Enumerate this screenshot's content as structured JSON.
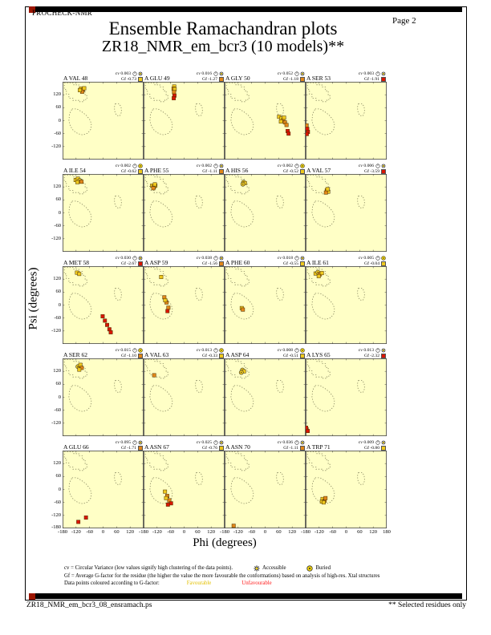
{
  "page": {
    "app": "PROCHECK-NMR",
    "page_label": "Page  2",
    "title": "Ensemble Ramachandran plots",
    "subtitle": "ZR18_NMR_em_bcr3 (10 models)**",
    "footer_left": "ZR18_NMR_em_bcr3_08_ensramach.ps",
    "footer_right": "** Selected residues only"
  },
  "legend": {
    "line1": "cv = Circular Variance (low values signify high clustering of the data points).",
    "accessible_label": "Accessible",
    "buried_label": "Buried",
    "line2": "Gf = Average G-factor for the residue (the higher the value the more favourable the conformations) based on analysis of high-res. Xtal structures",
    "line3": "Data points coloured according to G-factor:",
    "favourable_label": "Favourable",
    "unfavourable_label": "Unfavourable"
  },
  "colors": {
    "plot_bg": "#ffffc6",
    "favourable_yellow": "#eec81e",
    "mid_orange": "#e0861a",
    "unfavourable_red": "#da1602",
    "region_dots": "#85855f",
    "buried_icon": "#f2d410",
    "corner_marker": "#9b1500"
  },
  "chart_data": {
    "type": "scatter",
    "layout": {
      "rows": 5,
      "cols": 4
    },
    "xlabel": "Phi (degrees)",
    "ylabel": "Psi (degrees)",
    "xlim": [
      -180,
      180
    ],
    "ylim": [
      -180,
      180
    ],
    "xticks": [
      -180,
      -120,
      -60,
      0,
      60,
      120
    ],
    "xtick_last": 180,
    "yticks": [
      120,
      60,
      0,
      -60,
      -120
    ],
    "ytick_bottom": -180,
    "regions": {
      "beta": [
        [
          -172,
          174
        ],
        [
          -130,
          174
        ],
        [
          -130,
          166
        ],
        [
          -108,
          166
        ],
        [
          -108,
          156
        ],
        [
          -92,
          156
        ],
        [
          -92,
          138
        ],
        [
          -80,
          138
        ],
        [
          -80,
          116
        ],
        [
          -72,
          116
        ],
        [
          -72,
          98
        ],
        [
          -86,
          98
        ],
        [
          -86,
          88
        ],
        [
          -108,
          88
        ],
        [
          -108,
          94
        ],
        [
          -134,
          94
        ],
        [
          -134,
          104
        ],
        [
          -152,
          104
        ],
        [
          -152,
          122
        ],
        [
          -163,
          122
        ],
        [
          -163,
          144
        ],
        [
          -172,
          144
        ]
      ],
      "alpha": [
        [
          -138,
          54
        ],
        [
          -116,
          54
        ],
        [
          -96,
          42
        ],
        [
          -76,
          26
        ],
        [
          -60,
          6
        ],
        [
          -52,
          -14
        ],
        [
          -55,
          -40
        ],
        [
          -68,
          -58
        ],
        [
          -90,
          -66
        ],
        [
          -112,
          -60
        ],
        [
          -132,
          -46
        ],
        [
          -146,
          -24
        ],
        [
          -152,
          2
        ],
        [
          -149,
          32
        ]
      ],
      "alphaL": [
        [
          54,
          78
        ],
        [
          72,
          78
        ],
        [
          80,
          64
        ],
        [
          82,
          40
        ],
        [
          74,
          22
        ],
        [
          60,
          24
        ],
        [
          52,
          42
        ],
        [
          50,
          62
        ]
      ]
    },
    "subplots": [
      {
        "residue": "A VAL 48",
        "cv": "0.003",
        "gf": "-0.73",
        "accessibility": "accessible",
        "gf_color": "yellow",
        "points": [
          [
            -98,
            148,
            "y"
          ],
          [
            -90,
            142,
            "o"
          ],
          [
            -84,
            150,
            "y"
          ],
          [
            -93,
            134,
            "o"
          ],
          [
            -103,
            141,
            "y"
          ]
        ]
      },
      {
        "residue": "A GLU 49",
        "cv": "0.016",
        "gf": "-1.27",
        "accessibility": "accessible",
        "gf_color": "orange",
        "points": [
          [
            -44,
            158,
            "y"
          ],
          [
            -47,
            148,
            "o"
          ],
          [
            -42,
            146,
            "y"
          ],
          [
            -45,
            132,
            "o"
          ],
          [
            -43,
            116,
            "r"
          ],
          [
            -46,
            104,
            "r"
          ]
        ]
      },
      {
        "residue": "A GLY 50",
        "cv": "0.052",
        "gf": "-1.18",
        "accessibility": "accessible",
        "gf_color": "orange",
        "points": [
          [
            62,
            18,
            "y"
          ],
          [
            72,
            10,
            "y"
          ],
          [
            80,
            2,
            "o"
          ],
          [
            88,
            -8,
            "o"
          ],
          [
            70,
            -4,
            "y"
          ],
          [
            95,
            -20,
            "o"
          ],
          [
            100,
            -48,
            "r"
          ],
          [
            104,
            -60,
            "r"
          ],
          [
            84,
            14,
            "y"
          ]
        ]
      },
      {
        "residue": "A SER 53",
        "cv": "0.003",
        "gf": "-1.91",
        "accessibility": "accessible",
        "gf_color": "red",
        "points": [
          [
            -176,
            -22,
            "o"
          ],
          [
            -173,
            -38,
            "r"
          ],
          [
            -170,
            -52,
            "r"
          ],
          [
            -175,
            -62,
            "r"
          ]
        ]
      },
      {
        "residue": "A ILE 54",
        "cv": "0.002",
        "gf": "-0.62",
        "accessibility": "buried",
        "gf_color": "yellow",
        "points": [
          [
            -122,
            152,
            "y"
          ],
          [
            -112,
            158,
            "y"
          ],
          [
            -104,
            150,
            "y",
            "ci"
          ],
          [
            -96,
            144,
            "o"
          ],
          [
            -114,
            142,
            "y"
          ]
        ]
      },
      {
        "residue": "A PHE 55",
        "cv": "0.002",
        "gf": "-1.11",
        "accessibility": "accessible",
        "gf_color": "orange",
        "points": [
          [
            -142,
            126,
            "y"
          ],
          [
            -134,
            120,
            "o"
          ],
          [
            -128,
            126,
            "y"
          ],
          [
            -137,
            114,
            "o"
          ],
          [
            -130,
            132,
            "y"
          ]
        ]
      },
      {
        "residue": "A HIS 56",
        "cv": "0.002",
        "gf": "-0.52",
        "accessibility": "buried",
        "gf_color": "yellow",
        "points": [
          [
            -96,
            142,
            "y",
            "ci"
          ],
          [
            -90,
            138,
            "y"
          ],
          [
            -99,
            133,
            "y",
            "ci"
          ]
        ]
      },
      {
        "residue": "A VAL 57",
        "cv": "0.006",
        "gf": "-3.59",
        "accessibility": "accessible",
        "gf_color": "red",
        "points": [
          [
            -86,
            104,
            "o"
          ],
          [
            -80,
            98,
            "y"
          ],
          [
            -90,
            94,
            "o"
          ],
          [
            -83,
            110,
            "y"
          ]
        ]
      },
      {
        "residue": "A MET 58",
        "cv": "0.030",
        "gf": "-2.67",
        "accessibility": "accessible",
        "gf_color": "red",
        "points": [
          [
            -116,
            150,
            "y"
          ],
          [
            -106,
            144,
            "y"
          ],
          [
            -2,
            -52,
            "r"
          ],
          [
            8,
            -72,
            "r"
          ],
          [
            18,
            -92,
            "r"
          ],
          [
            28,
            -112,
            "r"
          ],
          [
            34,
            -126,
            "r"
          ]
        ]
      },
      {
        "residue": "A ASP 59",
        "cv": "0.038",
        "gf": "-1.56",
        "accessibility": "accessible",
        "gf_color": "orange",
        "points": [
          [
            -102,
            130,
            "y"
          ],
          [
            -88,
            36,
            "o"
          ],
          [
            -78,
            12,
            "o"
          ],
          [
            -70,
            -12,
            "o"
          ],
          [
            -74,
            -28,
            "r"
          ],
          [
            -84,
            22,
            "y"
          ]
        ]
      },
      {
        "residue": "A PHE 60",
        "cv": "0.018",
        "gf": "-0.55",
        "accessibility": "accessible",
        "gf_color": "yellow",
        "points": [
          [
            -104,
            -14,
            "y"
          ],
          [
            -99,
            -21,
            "o"
          ]
        ]
      },
      {
        "residue": "A ILE 61",
        "cv": "0.005",
        "gf": "-0.04",
        "accessibility": "buried",
        "gf_color": "yellow",
        "points": [
          [
            -136,
            146,
            "y"
          ],
          [
            -126,
            152,
            "y",
            "ci"
          ],
          [
            -117,
            142,
            "o"
          ],
          [
            -108,
            148,
            "y"
          ],
          [
            -122,
            134,
            "y"
          ]
        ]
      },
      {
        "residue": "A SER 62",
        "cv": "0.015",
        "gf": "-1.10",
        "accessibility": "buried",
        "gf_color": "orange",
        "points": [
          [
            -112,
            142,
            "y",
            "ci"
          ],
          [
            -101,
            150,
            "y"
          ],
          [
            -95,
            136,
            "o"
          ],
          [
            -106,
            128,
            "y"
          ]
        ]
      },
      {
        "residue": "A VAL 63",
        "cv": "0.013",
        "gf": "-0.33",
        "accessibility": "buried",
        "gf_color": "yellow",
        "points": [
          [
            -133,
            102,
            "o"
          ]
        ]
      },
      {
        "residue": "A ASP 64",
        "cv": "0.008",
        "gf": "-0.51",
        "accessibility": "buried",
        "gf_color": "yellow",
        "points": [
          [
            -101,
            126,
            "y",
            "ci"
          ],
          [
            -94,
            120,
            "y"
          ],
          [
            -106,
            115,
            "y",
            "ci"
          ]
        ]
      },
      {
        "residue": "A LYS 65",
        "cv": "0.013",
        "gf": "-2.32",
        "accessibility": "accessible",
        "gf_color": "red",
        "points": [
          [
            -176,
            -148,
            "r"
          ],
          [
            -171,
            -156,
            "r"
          ],
          [
            -178,
            -141,
            "r"
          ]
        ]
      },
      {
        "residue": "A GLU 66",
        "cv": "0.095",
        "gf": "-1.71",
        "accessibility": "accessible",
        "gf_color": "orange",
        "points": [
          [
            -110,
            -150,
            "r"
          ],
          [
            -76,
            -130,
            "r"
          ]
        ]
      },
      {
        "residue": "A ASN 67",
        "cv": "0.025",
        "gf": "-0.76",
        "accessibility": "accessible",
        "gf_color": "yellow",
        "points": [
          [
            -85,
            -10,
            "y"
          ],
          [
            -75,
            -30,
            "o"
          ],
          [
            -66,
            -50,
            "o"
          ],
          [
            -58,
            -64,
            "r"
          ],
          [
            -72,
            -70,
            "r"
          ],
          [
            -80,
            -40,
            "y"
          ]
        ]
      },
      {
        "residue": "A ASN 70",
        "cv": "0.036",
        "gf": "-1.11",
        "accessibility": "accessible",
        "gf_color": "orange",
        "points": [
          [
            -140,
            -168,
            "o"
          ]
        ]
      },
      {
        "residue": "A TRP 71",
        "cv": "0.009",
        "gf": "-0.80",
        "accessibility": "accessible",
        "gf_color": "yellow",
        "points": [
          [
            -105,
            -44,
            "y"
          ],
          [
            -96,
            -52,
            "o"
          ],
          [
            -108,
            -56,
            "y"
          ],
          [
            -92,
            -40,
            "o"
          ],
          [
            -100,
            -60,
            "y"
          ]
        ]
      }
    ]
  }
}
